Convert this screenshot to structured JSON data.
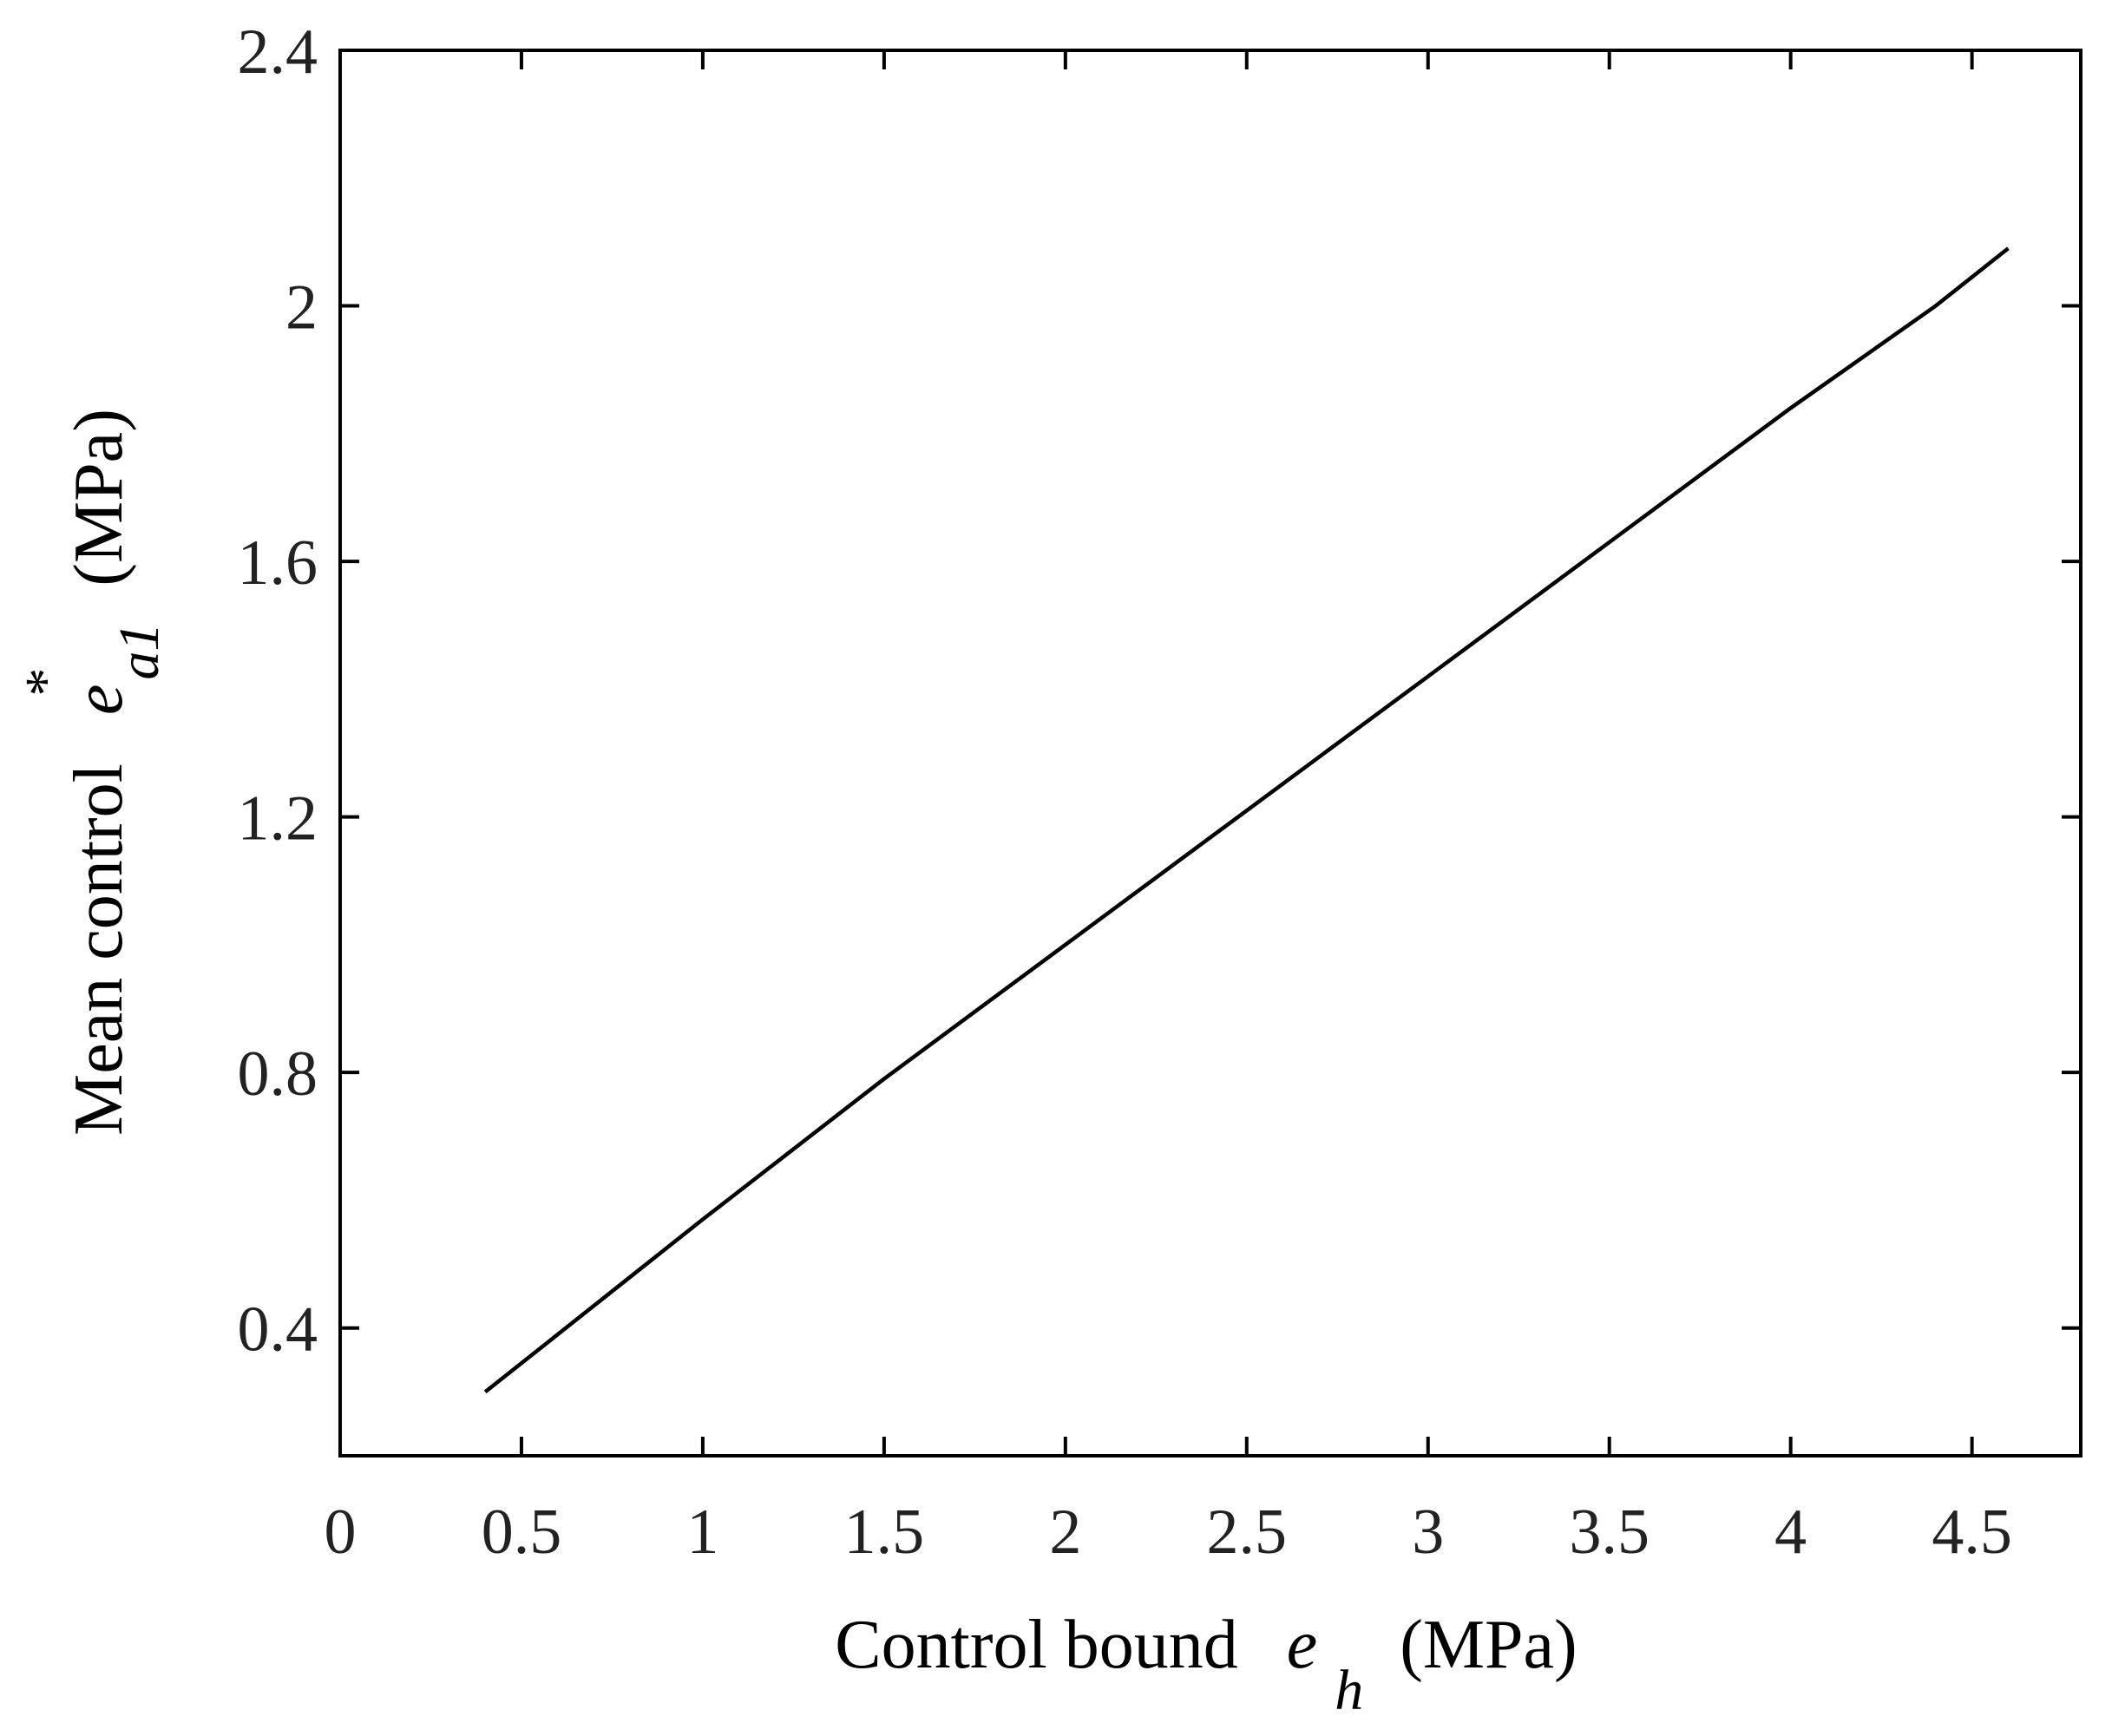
{
  "chart_data": {
    "type": "line",
    "title": "",
    "xlabel": {
      "prefix": "Control bound",
      "symbol": "e",
      "subscript": "h",
      "unit": "(MPa)"
    },
    "ylabel": {
      "prefix": "Mean control",
      "symbol": "e",
      "subscript": "a1",
      "superscript": "*",
      "unit": "(MPa)"
    },
    "xlim": [
      0,
      4.8
    ],
    "ylim": [
      0.2,
      2.4
    ],
    "xticks": [
      0,
      0.5,
      1,
      1.5,
      2,
      2.5,
      3,
      3.5,
      4,
      4.5
    ],
    "xtick_labels": [
      "0",
      "0.5",
      "1",
      "1.5",
      "2",
      "2.5",
      "3",
      "3.5",
      "4",
      "4.5"
    ],
    "yticks": [
      0.4,
      0.8,
      1.2,
      1.6,
      2.0,
      2.4
    ],
    "ytick_labels": [
      "0.4",
      "0.8",
      "1.2",
      "1.6",
      "2",
      "2.4"
    ],
    "grid": false,
    "series": [
      {
        "x": [
          0.4,
          0.8,
          1.0,
          1.5,
          2.0,
          2.5,
          3.0,
          3.5,
          4.0,
          4.4,
          4.6
        ],
        "y": [
          0.3,
          0.48,
          0.57,
          0.79,
          1.0,
          1.21,
          1.42,
          1.63,
          1.84,
          2.0,
          2.09
        ]
      }
    ],
    "colors": {
      "line": "#000000",
      "axes": "#000000",
      "text": "#222222"
    }
  }
}
